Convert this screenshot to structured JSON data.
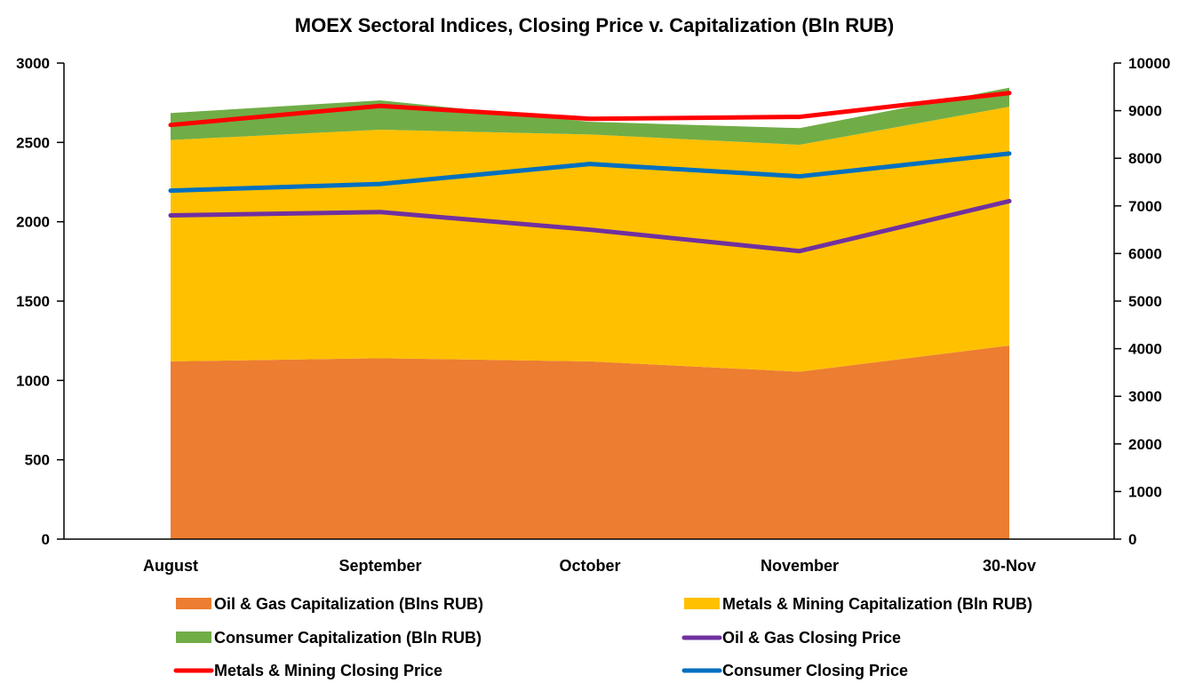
{
  "chart_data": {
    "type": "area",
    "title": "MOEX Sectoral Indices, Closing Price v. Capitalization (Bln RUB)",
    "categories": [
      "August",
      "September",
      "October",
      "November",
      "30-Nov"
    ],
    "y_left": {
      "range": [
        0,
        3000
      ],
      "ticks": [
        "0",
        "500",
        "1000",
        "1500",
        "2000",
        "2500",
        "3000"
      ]
    },
    "y_right": {
      "range": [
        0,
        10000
      ],
      "ticks": [
        "0",
        "1000",
        "2000",
        "3000",
        "4000",
        "5000",
        "6000",
        "7000",
        "8000",
        "9000",
        "10000"
      ]
    },
    "stacked_area_series": [
      {
        "name": "Oil & Gas Capitalization (Blns RUB)",
        "color": "#ED7D31",
        "axis": "left",
        "values": [
          1120,
          1140,
          1120,
          1055,
          1220
        ]
      },
      {
        "name": "Metals & Mining Capitalization (Bln RUB)",
        "color": "#FFC000",
        "axis": "left",
        "values": [
          1395,
          1440,
          1430,
          1430,
          1505
        ]
      },
      {
        "name": "Consumer Capitalization (Bln RUB)",
        "color": "#70AD47",
        "axis": "left",
        "values": [
          170,
          185,
          80,
          105,
          120
        ]
      }
    ],
    "line_series": [
      {
        "name": "Oil & Gas Closing Price",
        "color": "#7030A0",
        "axis": "right",
        "values": [
          6800,
          6870,
          6500,
          6050,
          7100
        ]
      },
      {
        "name": "Metals & Mining Closing Price",
        "color": "#FF0000",
        "axis": "right",
        "values": [
          8700,
          9100,
          8830,
          8870,
          9370
        ]
      },
      {
        "name": "Consumer Closing Price",
        "color": "#0070C0",
        "axis": "right",
        "values": [
          7320,
          7460,
          7880,
          7620,
          8100
        ]
      }
    ],
    "legend": {
      "placement": "bottom",
      "items": [
        {
          "label": "Oil & Gas Capitalization (Blns RUB)",
          "color": "#ED7D31",
          "kind": "area"
        },
        {
          "label": "Metals & Mining Capitalization (Bln RUB)",
          "color": "#FFC000",
          "kind": "area"
        },
        {
          "label": "Consumer Capitalization (Bln RUB)",
          "color": "#70AD47",
          "kind": "area"
        },
        {
          "label": "Oil & Gas Closing Price",
          "color": "#7030A0",
          "kind": "line"
        },
        {
          "label": "Metals & Mining Closing Price",
          "color": "#FF0000",
          "kind": "line"
        },
        {
          "label": "Consumer Closing Price",
          "color": "#0070C0",
          "kind": "line"
        }
      ]
    },
    "grid": false
  }
}
